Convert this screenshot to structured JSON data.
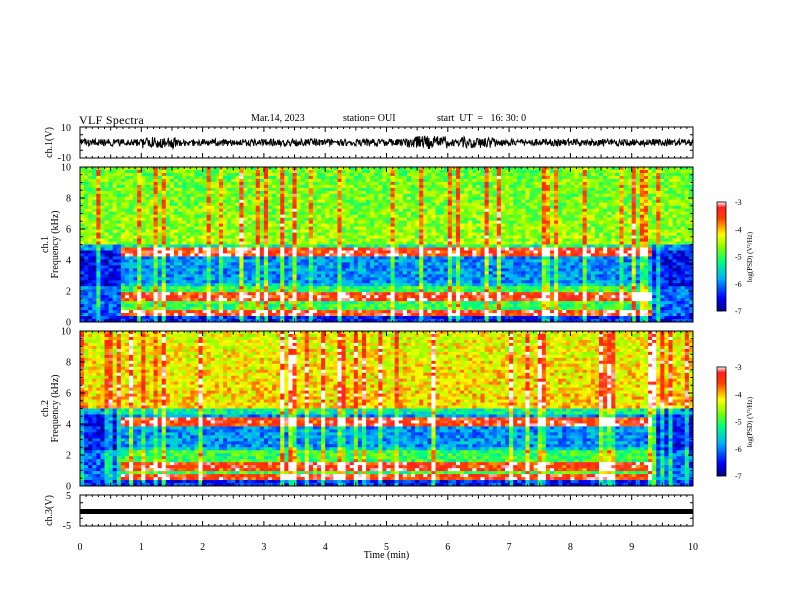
{
  "header": {
    "title": "VLF Spectra",
    "date": "Mar.14, 2023",
    "station": "station= OUI",
    "start": "start  UT  =   16: 30: 0"
  },
  "chart_data": [
    {
      "type": "line",
      "ylabel": "ch.1(V)",
      "yticks": [
        "10",
        "-10"
      ],
      "ylim": [
        -10,
        10
      ],
      "xlim": [
        0,
        10
      ],
      "description_series": [
        {
          "values": [
            0
          ]
        }
      ]
    },
    {
      "type": "heatmap",
      "ylabel_top": "ch.1",
      "ylabel": "Frequency  (kHz)",
      "yticks": [
        "0",
        "2",
        "4",
        "6",
        "8",
        "10"
      ],
      "ylim": [
        0,
        10
      ],
      "xlim": [
        0,
        10
      ],
      "colorbar": {
        "label": "log(PSD) (V²/Hz)",
        "ticks": [
          "-3",
          "-4",
          "-5",
          "-6",
          "-7"
        ],
        "range": [
          -7,
          -3
        ]
      },
      "features": {
        "recording_start_min": 0.7,
        "recording_end_min": 9.35,
        "bands_kHz": [
          0.4,
          1.6,
          4.5
        ]
      }
    },
    {
      "type": "heatmap",
      "ylabel_top": "ch.2",
      "ylabel": "Frequency  (kHz)",
      "yticks": [
        "0",
        "2",
        "4",
        "6",
        "8",
        "10"
      ],
      "ylim": [
        0,
        10
      ],
      "xlim": [
        0,
        10
      ],
      "colorbar": {
        "label": "log(PSD) (V²/Hz)",
        "ticks": [
          "-3",
          "-4",
          "-5",
          "-6",
          "-7"
        ],
        "range": [
          -7,
          -3
        ]
      },
      "features": {
        "recording_start_min": 0.7,
        "recording_end_min": 9.35,
        "bands_kHz": [
          0.4,
          1.3,
          4.2
        ]
      }
    },
    {
      "type": "line",
      "ylabel": "ch.3(V)",
      "yticks": [
        "5",
        "-5"
      ],
      "ylim": [
        -5,
        5
      ],
      "xlim": [
        0,
        10
      ],
      "series": [
        {
          "x": [
            0,
            10
          ],
          "values": [
            -1.5,
            -1.5
          ]
        }
      ],
      "xlabel": "Time  (min)",
      "xticks": [
        "0",
        "1",
        "2",
        "3",
        "4",
        "5",
        "6",
        "7",
        "8",
        "9",
        "10"
      ]
    }
  ]
}
